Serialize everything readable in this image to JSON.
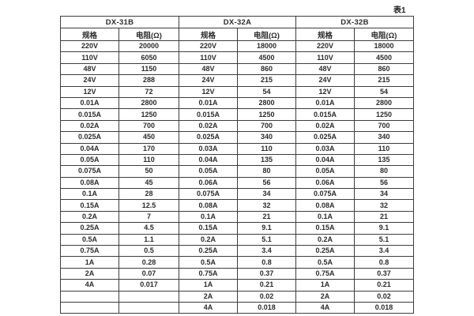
{
  "page": {
    "caption": "表1"
  },
  "table": {
    "groups": [
      {
        "title": "DX-31B"
      },
      {
        "title": "DX-32A"
      },
      {
        "title": "DX-32B"
      }
    ],
    "sub_headers": [
      "规格",
      "电阻(Ω)",
      "规格",
      "电阻(Ω)",
      "规格",
      "电阻(Ω)"
    ],
    "rows": [
      [
        "220V",
        "20000",
        "220V",
        "18000",
        "220V",
        "18000"
      ],
      [
        "110V",
        "6050",
        "110V",
        "4500",
        "110V",
        "4500"
      ],
      [
        "48V",
        "1150",
        "48V",
        "860",
        "48V",
        "860"
      ],
      [
        "24V",
        "288",
        "24V",
        "215",
        "24V",
        "215"
      ],
      [
        "12V",
        "72",
        "12V",
        "54",
        "12V",
        "54"
      ],
      [
        "0.01A",
        "2800",
        "0.01A",
        "2800",
        "0.01A",
        "2800"
      ],
      [
        "0.015A",
        "1250",
        "0.015A",
        "1250",
        "0.015A",
        "1250"
      ],
      [
        "0.02A",
        "700",
        "0.02A",
        "700",
        "0.02A",
        "700"
      ],
      [
        "0.025A",
        "450",
        "0.025A",
        "340",
        "0.025A",
        "340"
      ],
      [
        "0.04A",
        "170",
        "0.03A",
        "110",
        "0.03A",
        "110"
      ],
      [
        "0.05A",
        "110",
        "0.04A",
        "135",
        "0.04A",
        "135"
      ],
      [
        "0.075A",
        "50",
        "0.05A",
        "80",
        "0.05A",
        "80"
      ],
      [
        "0.08A",
        "45",
        "0.06A",
        "56",
        "0.06A",
        "56"
      ],
      [
        "0.1A",
        "28",
        "0.075A",
        "34",
        "0.075A",
        "34"
      ],
      [
        "0.15A",
        "12.5",
        "0.08A",
        "32",
        "0.08A",
        "32"
      ],
      [
        "0.2A",
        "7",
        "0.1A",
        "21",
        "0.1A",
        "21"
      ],
      [
        "0.25A",
        "4.5",
        "0.15A",
        "9.1",
        "0.15A",
        "9.1"
      ],
      [
        "0.5A",
        "1.1",
        "0.2A",
        "5.1",
        "0.2A",
        "5.1"
      ],
      [
        "0.75A",
        "0.5",
        "0.25A",
        "3.4",
        "0.25A",
        "3.4"
      ],
      [
        "1A",
        "0.28",
        "0.5A",
        "0.8",
        "0.5A",
        "0.8"
      ],
      [
        "2A",
        "0.07",
        "0.75A",
        "0.37",
        "0.75A",
        "0.37"
      ],
      [
        "4A",
        "0.017",
        "1A",
        "0.21",
        "1A",
        "0.21"
      ],
      [
        "",
        "",
        "2A",
        "0.02",
        "2A",
        "0.02"
      ],
      [
        "",
        "",
        "4A",
        "0.018",
        "4A",
        "0.018"
      ]
    ],
    "colors": {
      "border": "#3d3d3d",
      "text": "#2b2b2b",
      "background": "#ffffff"
    }
  }
}
